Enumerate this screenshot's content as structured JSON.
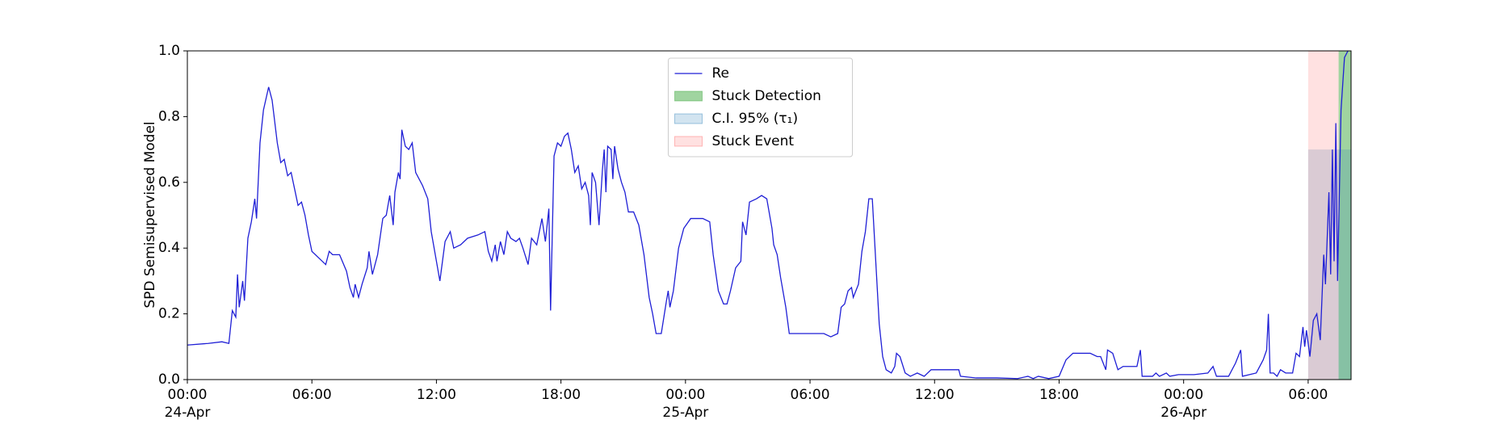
{
  "chart_data": {
    "type": "line",
    "ylabel": "SPD Semisupervised Model",
    "xlim": [
      "1900-04-24 00:00",
      "1900-04-26 08:04"
    ],
    "xticks": [
      {
        "value": "1900-04-24 00:00",
        "label": "00:00\n24-Apr\n1900"
      },
      {
        "value": "1900-04-24 06:00",
        "label": "06:00"
      },
      {
        "value": "1900-04-24 12:00",
        "label": "12:00"
      },
      {
        "value": "1900-04-24 18:00",
        "label": "18:00"
      },
      {
        "value": "1900-04-25 00:00",
        "label": "00:00\n25-Apr"
      },
      {
        "value": "1900-04-25 06:00",
        "label": "06:00"
      },
      {
        "value": "1900-04-25 12:00",
        "label": "12:00"
      },
      {
        "value": "1900-04-25 18:00",
        "label": "18:00"
      },
      {
        "value": "1900-04-26 00:00",
        "label": "00:00\n26-Apr"
      },
      {
        "value": "1900-04-26 06:00",
        "label": "06:00"
      }
    ],
    "ylim": [
      0,
      1
    ],
    "yticks": [
      {
        "value": 0,
        "label": "0.0"
      },
      {
        "value": 0.2,
        "label": "0.2"
      },
      {
        "value": 0.4,
        "label": "0.4"
      },
      {
        "value": 0.6,
        "label": "0.6"
      },
      {
        "value": 0.8,
        "label": "0.8"
      },
      {
        "value": 1,
        "label": "1.0"
      }
    ],
    "legend": "upper center",
    "series": [
      {
        "name": "Re",
        "color": "#1f1fd6",
        "x": [
          "1900-04-24 00:00",
          "1900-04-24 01:00",
          "1900-04-24 01:40",
          "1900-04-24 02:00",
          "1900-04-24 02:10",
          "1900-04-24 02:20",
          "1900-04-24 02:25",
          "1900-04-24 02:30",
          "1900-04-24 02:40",
          "1900-04-24 02:45",
          "1900-04-24 02:55",
          "1900-04-24 03:05",
          "1900-04-24 03:15",
          "1900-04-24 03:20",
          "1900-04-24 03:30",
          "1900-04-24 03:40",
          "1900-04-24 03:55",
          "1900-04-24 04:05",
          "1900-04-24 04:20",
          "1900-04-24 04:30",
          "1900-04-24 04:40",
          "1900-04-24 04:50",
          "1900-04-24 05:00",
          "1900-04-24 05:10",
          "1900-04-24 05:20",
          "1900-04-24 05:30",
          "1900-04-24 05:40",
          "1900-04-24 05:50",
          "1900-04-24 06:00",
          "1900-04-24 06:20",
          "1900-04-24 06:40",
          "1900-04-24 06:50",
          "1900-04-24 07:00",
          "1900-04-24 07:20",
          "1900-04-24 07:40",
          "1900-04-24 07:50",
          "1900-04-24 08:00",
          "1900-04-24 08:05",
          "1900-04-24 08:15",
          "1900-04-24 08:25",
          "1900-04-24 08:40",
          "1900-04-24 08:45",
          "1900-04-24 08:55",
          "1900-04-24 09:10",
          "1900-04-24 09:25",
          "1900-04-24 09:35",
          "1900-04-24 09:45",
          "1900-04-24 09:55",
          "1900-04-24 10:00",
          "1900-04-24 10:10",
          "1900-04-24 10:15",
          "1900-04-24 10:20",
          "1900-04-24 10:30",
          "1900-04-24 10:40",
          "1900-04-24 10:50",
          "1900-04-24 11:00",
          "1900-04-24 11:10",
          "1900-04-24 11:20",
          "1900-04-24 11:35",
          "1900-04-24 11:45",
          "1900-04-24 11:55",
          "1900-04-24 12:05",
          "1900-04-24 12:10",
          "1900-04-24 12:15",
          "1900-04-24 12:25",
          "1900-04-24 12:40",
          "1900-04-24 12:50",
          "1900-04-24 13:10",
          "1900-04-24 13:30",
          "1900-04-24 14:00",
          "1900-04-24 14:20",
          "1900-04-24 14:30",
          "1900-04-24 14:40",
          "1900-04-24 14:50",
          "1900-04-24 14:55",
          "1900-04-24 15:05",
          "1900-04-24 15:15",
          "1900-04-24 15:25",
          "1900-04-24 15:35",
          "1900-04-24 15:50",
          "1900-04-24 16:00",
          "1900-04-24 16:10",
          "1900-04-24 16:25",
          "1900-04-24 16:35",
          "1900-04-24 16:50",
          "1900-04-24 17:05",
          "1900-04-24 17:15",
          "1900-04-24 17:25",
          "1900-04-24 17:30",
          "1900-04-24 17:40",
          "1900-04-24 17:50",
          "1900-04-24 18:00",
          "1900-04-24 18:10",
          "1900-04-24 18:20",
          "1900-04-24 18:30",
          "1900-04-24 18:40",
          "1900-04-24 18:50",
          "1900-04-24 19:00",
          "1900-04-24 19:10",
          "1900-04-24 19:20",
          "1900-04-24 19:25",
          "1900-04-24 19:30",
          "1900-04-24 19:40",
          "1900-04-24 19:50",
          "1900-04-24 20:00",
          "1900-04-24 20:05",
          "1900-04-24 20:10",
          "1900-04-24 20:15",
          "1900-04-24 20:25",
          "1900-04-24 20:30",
          "1900-04-24 20:35",
          "1900-04-24 20:45",
          "1900-04-24 20:55",
          "1900-04-24 21:05",
          "1900-04-24 21:15",
          "1900-04-24 21:30",
          "1900-04-24 21:45",
          "1900-04-24 22:00",
          "1900-04-24 22:15",
          "1900-04-24 22:25",
          "1900-04-24 22:35",
          "1900-04-24 22:50",
          "1900-04-24 23:05",
          "1900-04-24 23:10",
          "1900-04-24 23:15",
          "1900-04-24 23:25",
          "1900-04-24 23:40",
          "1900-04-24 23:55",
          "1900-04-25 00:15",
          "1900-04-25 00:50",
          "1900-04-25 01:10",
          "1900-04-25 01:20",
          "1900-04-25 01:35",
          "1900-04-25 01:50",
          "1900-04-25 02:00",
          "1900-04-25 02:10",
          "1900-04-25 02:25",
          "1900-04-25 02:40",
          "1900-04-25 02:45",
          "1900-04-25 02:55",
          "1900-04-25 03:05",
          "1900-04-25 03:25",
          "1900-04-25 03:40",
          "1900-04-25 03:55",
          "1900-04-25 04:10",
          "1900-04-25 04:15",
          "1900-04-25 04:25",
          "1900-04-25 04:35",
          "1900-04-25 04:50",
          "1900-04-25 05:00",
          "1900-04-25 05:30",
          "1900-04-25 06:00",
          "1900-04-25 06:40",
          "1900-04-25 07:00",
          "1900-04-25 07:20",
          "1900-04-25 07:30",
          "1900-04-25 07:40",
          "1900-04-25 07:50",
          "1900-04-25 08:00",
          "1900-04-25 08:05",
          "1900-04-25 08:20",
          "1900-04-25 08:30",
          "1900-04-25 08:40",
          "1900-04-25 08:50",
          "1900-04-25 09:00",
          "1900-04-25 09:10",
          "1900-04-25 09:20",
          "1900-04-25 09:30",
          "1900-04-25 09:40",
          "1900-04-25 09:55",
          "1900-04-25 10:05",
          "1900-04-25 10:10",
          "1900-04-25 10:20",
          "1900-04-25 10:35",
          "1900-04-25 10:50",
          "1900-04-25 11:10",
          "1900-04-25 11:30",
          "1900-04-25 11:50",
          "1900-04-25 12:30",
          "1900-04-25 13:10",
          "1900-04-25 13:15",
          "1900-04-25 14:00",
          "1900-04-25 15:00",
          "1900-04-25 16:00",
          "1900-04-25 16:30",
          "1900-04-25 16:45",
          "1900-04-25 17:00",
          "1900-04-25 17:30",
          "1900-04-25 18:00",
          "1900-04-25 18:20",
          "1900-04-25 18:40",
          "1900-04-25 19:30",
          "1900-04-25 19:50",
          "1900-04-25 20:00",
          "1900-04-25 20:15",
          "1900-04-25 20:20",
          "1900-04-25 20:35",
          "1900-04-25 20:50",
          "1900-04-25 21:05",
          "1900-04-25 21:30",
          "1900-04-25 21:45",
          "1900-04-25 21:55",
          "1900-04-25 22:00",
          "1900-04-25 22:30",
          "1900-04-25 22:40",
          "1900-04-25 22:50",
          "1900-04-25 23:10",
          "1900-04-25 23:20",
          "1900-04-25 23:45",
          "1900-04-26 00:30",
          "1900-04-26 01:10",
          "1900-04-26 01:25",
          "1900-04-26 01:35",
          "1900-04-26 02:10",
          "1900-04-26 02:30",
          "1900-04-26 02:45",
          "1900-04-26 02:50",
          "1900-04-26 03:30",
          "1900-04-26 03:50",
          "1900-04-26 04:00",
          "1900-04-26 04:05",
          "1900-04-26 04:10",
          "1900-04-26 04:20",
          "1900-04-26 04:30",
          "1900-04-26 04:40",
          "1900-04-26 04:55",
          "1900-04-26 05:15",
          "1900-04-26 05:25",
          "1900-04-26 05:35",
          "1900-04-26 05:45",
          "1900-04-26 05:50",
          "1900-04-26 05:55",
          "1900-04-26 06:05",
          "1900-04-26 06:15",
          "1900-04-26 06:25",
          "1900-04-26 06:35",
          "1900-04-26 06:45",
          "1900-04-26 06:50",
          "1900-04-26 07:00",
          "1900-04-26 07:05",
          "1900-04-26 07:10",
          "1900-04-26 07:15",
          "1900-04-26 07:20",
          "1900-04-26 07:25",
          "1900-04-26 07:35",
          "1900-04-26 07:45",
          "1900-04-26 07:55"
        ],
        "values": [
          0.105,
          0.11,
          0.115,
          0.11,
          0.21,
          0.19,
          0.32,
          0.22,
          0.3,
          0.24,
          0.43,
          0.48,
          0.55,
          0.49,
          0.72,
          0.82,
          0.89,
          0.85,
          0.72,
          0.66,
          0.67,
          0.62,
          0.63,
          0.58,
          0.53,
          0.54,
          0.5,
          0.44,
          0.39,
          0.37,
          0.35,
          0.39,
          0.38,
          0.38,
          0.33,
          0.28,
          0.25,
          0.29,
          0.25,
          0.29,
          0.34,
          0.39,
          0.32,
          0.38,
          0.49,
          0.5,
          0.56,
          0.47,
          0.57,
          0.63,
          0.61,
          0.76,
          0.71,
          0.7,
          0.72,
          0.63,
          0.61,
          0.59,
          0.55,
          0.45,
          0.39,
          0.33,
          0.3,
          0.34,
          0.42,
          0.45,
          0.4,
          0.41,
          0.43,
          0.44,
          0.45,
          0.39,
          0.36,
          0.41,
          0.36,
          0.42,
          0.38,
          0.45,
          0.43,
          0.42,
          0.43,
          0.4,
          0.35,
          0.43,
          0.41,
          0.49,
          0.42,
          0.52,
          0.21,
          0.68,
          0.72,
          0.71,
          0.74,
          0.75,
          0.7,
          0.63,
          0.65,
          0.58,
          0.6,
          0.56,
          0.47,
          0.63,
          0.6,
          0.47,
          0.64,
          0.7,
          0.57,
          0.71,
          0.7,
          0.61,
          0.71,
          0.64,
          0.6,
          0.57,
          0.51,
          0.51,
          0.47,
          0.38,
          0.25,
          0.2,
          0.14,
          0.14,
          0.24,
          0.27,
          0.22,
          0.27,
          0.4,
          0.46,
          0.49,
          0.49,
          0.48,
          0.38,
          0.27,
          0.23,
          0.23,
          0.27,
          0.34,
          0.36,
          0.48,
          0.44,
          0.54,
          0.55,
          0.56,
          0.55,
          0.46,
          0.41,
          0.38,
          0.31,
          0.22,
          0.14,
          0.14,
          0.14,
          0.14,
          0.13,
          0.14,
          0.22,
          0.23,
          0.27,
          0.28,
          0.25,
          0.29,
          0.39,
          0.45,
          0.55,
          0.55,
          0.36,
          0.17,
          0.07,
          0.03,
          0.02,
          0.04,
          0.08,
          0.07,
          0.02,
          0.01,
          0.02,
          0.01,
          0.03,
          0.03,
          0.03,
          0.01,
          0.005,
          0.005,
          0.003,
          0.01,
          0.003,
          0.01,
          0.003,
          0.01,
          0.06,
          0.08,
          0.08,
          0.07,
          0.07,
          0.03,
          0.09,
          0.08,
          0.03,
          0.04,
          0.04,
          0.04,
          0.09,
          0.01,
          0.01,
          0.02,
          0.01,
          0.02,
          0.01,
          0.015,
          0.015,
          0.02,
          0.04,
          0.01,
          0.01,
          0.05,
          0.09,
          0.01,
          0.02,
          0.06,
          0.09,
          0.2,
          0.02,
          0.02,
          0.01,
          0.03,
          0.02,
          0.02,
          0.08,
          0.07,
          0.16,
          0.1,
          0.15,
          0.07,
          0.18,
          0.2,
          0.12,
          0.38,
          0.29,
          0.57,
          0.32,
          0.7,
          0.36,
          0.78,
          0.3,
          0.82,
          0.98,
          1.0
        ]
      }
    ],
    "spans": [
      {
        "name": "Stuck Detection",
        "color": "#2ca02c",
        "alpha": 0.45,
        "x": [
          "1900-04-26 07:28",
          "1900-04-26 08:04"
        ],
        "y": [
          0,
          1
        ]
      },
      {
        "name": "C.I. 95% (τ₁)",
        "color": "#1f77b4",
        "alpha": 0.2,
        "x": [
          "1900-04-26 06:00",
          "1900-04-26 08:04"
        ],
        "y": [
          0,
          0.7
        ]
      },
      {
        "name": "Stuck Event",
        "color": "#ff5a5a",
        "alpha": 0.18,
        "x": [
          "1900-04-26 06:00",
          "1900-04-26 07:28"
        ],
        "y": [
          0,
          1
        ]
      }
    ]
  }
}
